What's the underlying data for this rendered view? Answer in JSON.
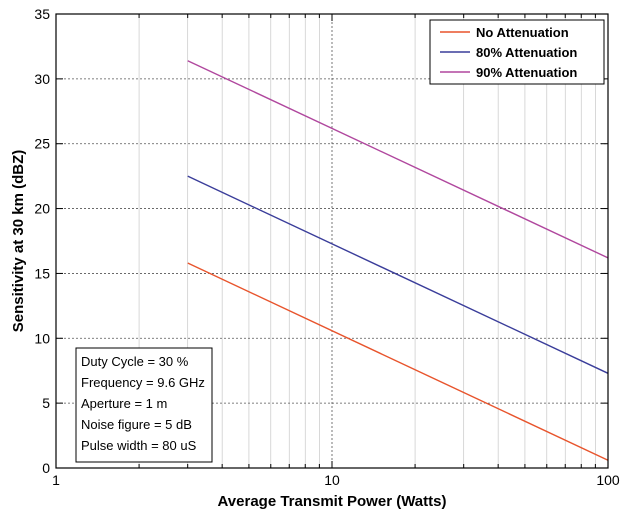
{
  "chart_data": {
    "type": "line",
    "xlabel": "Average Transmit Power (Watts)",
    "ylabel": "Sensitivity at 30 km (dBZ)",
    "xscale": "log",
    "xlim": [
      1,
      100
    ],
    "ylim": [
      0,
      35
    ],
    "x_ticks": [
      1,
      10,
      100
    ],
    "x_tick_labels": [
      "1",
      "10",
      "100"
    ],
    "y_ticks": [
      0,
      5,
      10,
      15,
      20,
      25,
      30,
      35
    ],
    "y_tick_labels": [
      "0",
      "5",
      "10",
      "15",
      "20",
      "25",
      "30",
      "35"
    ],
    "grid": true,
    "legend_position": "top-right",
    "series": [
      {
        "name": "No Attenuation",
        "color": "#e8542c",
        "x": [
          3,
          100
        ],
        "y": [
          15.8,
          0.6
        ]
      },
      {
        "name": "80% Attenuation",
        "color": "#3a3d9a",
        "x": [
          3,
          100
        ],
        "y": [
          22.5,
          7.3
        ]
      },
      {
        "name": "90% Attenuation",
        "color": "#b0479e",
        "x": [
          3,
          100
        ],
        "y": [
          31.4,
          16.2
        ]
      }
    ],
    "annotation": [
      "Duty Cycle = 30 %",
      "Frequency = 9.6 GHz",
      "Aperture = 1 m",
      "Noise figure = 5 dB",
      "Pulse width = 80 uS"
    ]
  }
}
